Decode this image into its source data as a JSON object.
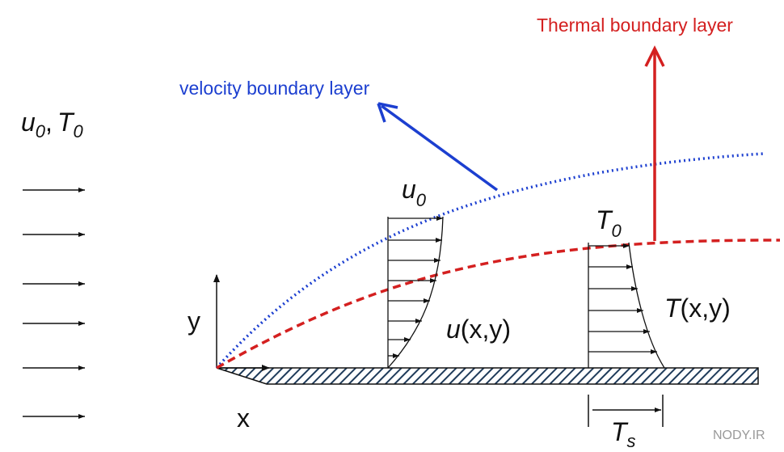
{
  "labels": {
    "thermal_boundary_layer": "Thermal boundary layer",
    "velocity_boundary_layer": "velocity boundary layer",
    "freestream": {
      "u": "u",
      "u_sub": "0",
      "sep": ",",
      "T": "T",
      "T_sub": "0"
    },
    "velocity_edge": {
      "u": "u",
      "sub": "0"
    },
    "temperature_edge": {
      "T": "T",
      "sub": "0"
    },
    "velocity_profile": {
      "u": "u",
      "args": "(x,y)"
    },
    "temperature_profile": {
      "T": "T",
      "args": "(x,y)"
    },
    "surface_temperature": {
      "T": "T",
      "sub": "s"
    },
    "axis_y": "y",
    "axis_x": "x",
    "watermark": "NODY.IR"
  }
}
